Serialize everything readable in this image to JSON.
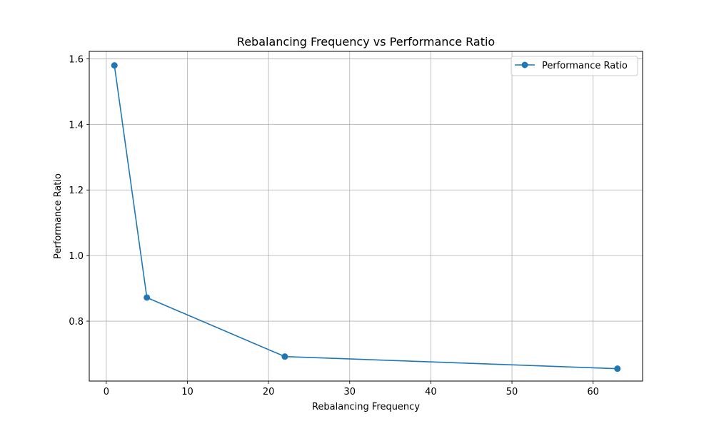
{
  "chart_data": {
    "type": "line",
    "title": "Rebalancing Frequency vs Performance Ratio",
    "xlabel": "Rebalancing Frequency",
    "ylabel": "Performance Ratio",
    "xlim": [
      -2.1,
      66.1
    ],
    "ylim": [
      0.6173,
      1.6227
    ],
    "xticks": [
      0,
      10,
      20,
      30,
      40,
      50,
      60
    ],
    "yticks": [
      0.8,
      1.0,
      1.2,
      1.4,
      1.6
    ],
    "grid": true,
    "legend_position": "top-right",
    "series": [
      {
        "name": "Performance Ratio",
        "color": "#1f77b4",
        "marker": "circle",
        "x": [
          1,
          5,
          22,
          63
        ],
        "y": [
          1.58,
          0.872,
          0.692,
          0.655
        ]
      }
    ]
  },
  "colors": {
    "series": "#1f77b4",
    "grid": "#b0b0b0",
    "axes": "#000000",
    "legend_border": "#cccccc"
  }
}
